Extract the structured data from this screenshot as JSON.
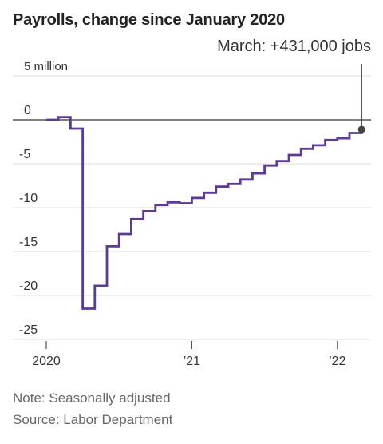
{
  "title": "Payrolls, change since January 2020",
  "notes": {
    "note": "Note: Seasonally adjusted",
    "source": "Source: Labor Department"
  },
  "colors": {
    "line": "#5b3b97",
    "grid": "#dddddd",
    "zero": "#555555",
    "text": "#333333",
    "annotation": "#444444"
  },
  "chart_data": {
    "type": "line",
    "step": true,
    "title": "Payrolls, change since January 2020",
    "unit": "million",
    "ylim": [
      -25,
      5
    ],
    "yticks": [
      {
        "value": 5,
        "label": "5 million"
      },
      {
        "value": 0,
        "label": "0"
      },
      {
        "value": -5,
        "label": "-5"
      },
      {
        "value": -10,
        "label": "-10"
      },
      {
        "value": -15,
        "label": "-15"
      },
      {
        "value": -20,
        "label": "-20"
      },
      {
        "value": -25,
        "label": "-25"
      }
    ],
    "xticks": [
      {
        "date": "2020-01",
        "label": "2020"
      },
      {
        "date": "2021-01",
        "label": "’21"
      },
      {
        "date": "2022-01",
        "label": "’22"
      }
    ],
    "grid": true,
    "annotation": {
      "date": "2022-03",
      "label": "March: +431,000 jobs"
    },
    "series": [
      {
        "x": [
          "2020-01",
          "2020-02",
          "2020-03",
          "2020-04",
          "2020-05",
          "2020-06",
          "2020-07",
          "2020-08",
          "2020-09",
          "2020-10",
          "2020-11",
          "2020-12",
          "2021-01",
          "2021-02",
          "2021-03",
          "2021-04",
          "2021-05",
          "2021-06",
          "2021-07",
          "2021-08",
          "2021-09",
          "2021-10",
          "2021-11",
          "2021-12",
          "2022-01",
          "2022-02",
          "2022-03"
        ],
        "y": [
          0,
          0.3,
          -1.0,
          -21.5,
          -18.9,
          -14.4,
          -13.0,
          -11.3,
          -10.4,
          -9.7,
          -9.4,
          -9.5,
          -8.9,
          -8.3,
          -7.6,
          -7.3,
          -6.8,
          -6.1,
          -5.2,
          -4.7,
          -4.0,
          -3.3,
          -2.9,
          -2.3,
          -2.1,
          -1.5,
          -1.1
        ]
      }
    ]
  }
}
